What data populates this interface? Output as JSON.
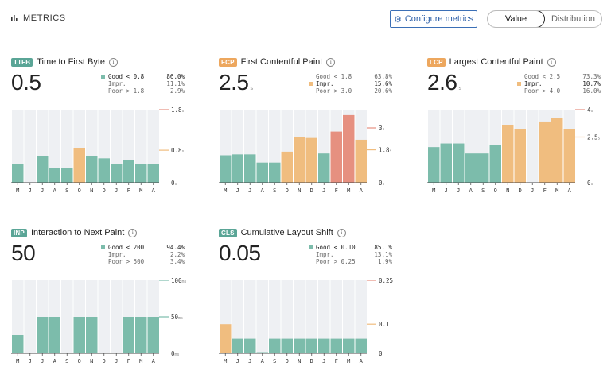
{
  "header": {
    "title": "METRICS",
    "configure_label": "Configure metrics",
    "view_toggle": {
      "value_label": "Value",
      "distribution_label": "Distribution",
      "selected": "Value"
    }
  },
  "colors": {
    "good": "#7cbcab",
    "impr": "#f0bd7f",
    "poor": "#e69080",
    "bg_band": "#eef0f3"
  },
  "metrics": [
    {
      "badge": "TTFB",
      "badge_color": "#5aa596",
      "name": "Time to First Byte",
      "value": "0.5",
      "unit": "",
      "dist": [
        {
          "label": "Good < 0.8",
          "pct": "86.0%",
          "hl": true
        },
        {
          "label": "Impr.",
          "pct": "11.1%",
          "hl": false
        },
        {
          "label": "Poor > 1.8",
          "pct": "2.9%",
          "hl": false
        }
      ],
      "highlight": 0
    },
    {
      "badge": "FCP",
      "badge_color": "#eda75e",
      "name": "First Contentful Paint",
      "value": "2.5",
      "unit": "s",
      "dist": [
        {
          "label": "Good < 1.8",
          "pct": "63.8%",
          "hl": false
        },
        {
          "label": "Impr.",
          "pct": "15.6%",
          "hl": true
        },
        {
          "label": "Poor > 3.0",
          "pct": "20.6%",
          "hl": false
        }
      ],
      "highlight": 1
    },
    {
      "badge": "LCP",
      "badge_color": "#eda75e",
      "name": "Largest Contentful Paint",
      "value": "2.6",
      "unit": "s",
      "dist": [
        {
          "label": "Good < 2.5",
          "pct": "73.3%",
          "hl": false
        },
        {
          "label": "Impr.",
          "pct": "10.7%",
          "hl": true
        },
        {
          "label": "Poor > 4.0",
          "pct": "16.0%",
          "hl": false
        }
      ],
      "highlight": 1
    },
    {
      "badge": "INP",
      "badge_color": "#5aa596",
      "name": "Interaction to Next Paint",
      "value": "50",
      "unit": "",
      "dist": [
        {
          "label": "Good < 200",
          "pct": "94.4%",
          "hl": true
        },
        {
          "label": "Impr.",
          "pct": "2.2%",
          "hl": false
        },
        {
          "label": "Poor > 500",
          "pct": "3.4%",
          "hl": false
        }
      ],
      "highlight": 0
    },
    {
      "badge": "CLS",
      "badge_color": "#5aa596",
      "name": "Cumulative Layout Shift",
      "value": "0.05",
      "unit": "",
      "dist": [
        {
          "label": "Good < 0.10",
          "pct": "85.1%",
          "hl": true
        },
        {
          "label": "Impr.",
          "pct": "13.1%",
          "hl": false
        },
        {
          "label": "Poor > 0.25",
          "pct": "1.9%",
          "hl": false
        }
      ],
      "highlight": 0
    }
  ],
  "chart_data": [
    {
      "type": "bar",
      "title": "Time to First Byte",
      "categories": [
        "M",
        "J",
        "J",
        "A",
        "S",
        "O",
        "N",
        "D",
        "J",
        "F",
        "M",
        "A"
      ],
      "values": [
        0.45,
        0.0,
        0.65,
        0.37,
        0.37,
        0.85,
        0.65,
        0.6,
        0.45,
        0.55,
        0.45,
        0.45
      ],
      "statuses": [
        "good",
        "good",
        "good",
        "good",
        "good",
        "impr",
        "good",
        "good",
        "good",
        "good",
        "good",
        "good"
      ],
      "ylim": [
        0,
        1.8
      ],
      "ticks": [
        {
          "v": 1.8,
          "label": "1.8",
          "unit": "s",
          "color": "poor"
        },
        {
          "v": 0.8,
          "label": "0.8",
          "unit": "s",
          "color": "impr"
        },
        {
          "v": 0,
          "label": "0",
          "unit": "s",
          "color": "none"
        }
      ]
    },
    {
      "type": "bar",
      "title": "First Contentful Paint",
      "categories": [
        "M",
        "J",
        "J",
        "A",
        "S",
        "O",
        "N",
        "D",
        "J",
        "F",
        "M",
        "A"
      ],
      "values": [
        1.5,
        1.55,
        1.55,
        1.1,
        1.1,
        1.7,
        2.5,
        2.45,
        1.6,
        2.8,
        3.7,
        2.35
      ],
      "statuses": [
        "good",
        "good",
        "good",
        "good",
        "good",
        "impr",
        "impr",
        "impr",
        "good",
        "poor",
        "poor",
        "impr"
      ],
      "ylim": [
        0,
        4.0
      ],
      "ticks": [
        {
          "v": 3.0,
          "label": "3",
          "unit": "s",
          "color": "poor"
        },
        {
          "v": 1.8,
          "label": "1.8",
          "unit": "s",
          "color": "impr"
        },
        {
          "v": 0,
          "label": "0",
          "unit": "s",
          "color": "none"
        }
      ]
    },
    {
      "type": "bar",
      "title": "Largest Contentful Paint",
      "categories": [
        "M",
        "J",
        "J",
        "A",
        "S",
        "O",
        "N",
        "D",
        "J",
        "F",
        "M",
        "A"
      ],
      "values": [
        1.95,
        2.15,
        2.15,
        1.6,
        1.6,
        2.05,
        3.15,
        2.95,
        0,
        3.35,
        3.55,
        2.95
      ],
      "statuses": [
        "good",
        "good",
        "good",
        "good",
        "good",
        "good",
        "impr",
        "impr",
        "good",
        "impr",
        "impr",
        "impr"
      ],
      "ylim": [
        0,
        4.0
      ],
      "ticks": [
        {
          "v": 4.0,
          "label": "4",
          "unit": "s",
          "color": "poor"
        },
        {
          "v": 2.5,
          "label": "2.5",
          "unit": "s",
          "color": "impr"
        },
        {
          "v": 0,
          "label": "0",
          "unit": "s",
          "color": "none"
        }
      ]
    },
    {
      "type": "bar",
      "title": "Interaction to Next Paint",
      "categories": [
        "M",
        "J",
        "J",
        "A",
        "S",
        "O",
        "N",
        "D",
        "J",
        "F",
        "M",
        "A"
      ],
      "values": [
        25,
        0,
        50,
        50,
        0,
        50,
        50,
        0,
        0,
        50,
        50,
        50
      ],
      "statuses": [
        "good",
        "good",
        "good",
        "good",
        "good",
        "good",
        "good",
        "good",
        "good",
        "good",
        "good",
        "good"
      ],
      "ylim": [
        0,
        100
      ],
      "ticks": [
        {
          "v": 100,
          "label": "100",
          "unit": "ms",
          "color": "good"
        },
        {
          "v": 50,
          "label": "50",
          "unit": "ms",
          "color": "good"
        },
        {
          "v": 0,
          "label": "0",
          "unit": "ms",
          "color": "none"
        }
      ]
    },
    {
      "type": "bar",
      "title": "Cumulative Layout Shift",
      "categories": [
        "M",
        "J",
        "J",
        "A",
        "S",
        "O",
        "N",
        "D",
        "J",
        "F",
        "M",
        "A"
      ],
      "values": [
        0.1,
        0.05,
        0.05,
        0.004,
        0.05,
        0.05,
        0.05,
        0.05,
        0.05,
        0.05,
        0.05,
        0.05
      ],
      "statuses": [
        "impr",
        "good",
        "good",
        "good",
        "good",
        "good",
        "good",
        "good",
        "good",
        "good",
        "good",
        "good"
      ],
      "ylim": [
        0,
        0.25
      ],
      "ticks": [
        {
          "v": 0.25,
          "label": "0.25",
          "unit": "",
          "color": "poor"
        },
        {
          "v": 0.1,
          "label": "0.1",
          "unit": "",
          "color": "impr"
        },
        {
          "v": 0,
          "label": "0",
          "unit": "",
          "color": "none"
        }
      ]
    }
  ]
}
